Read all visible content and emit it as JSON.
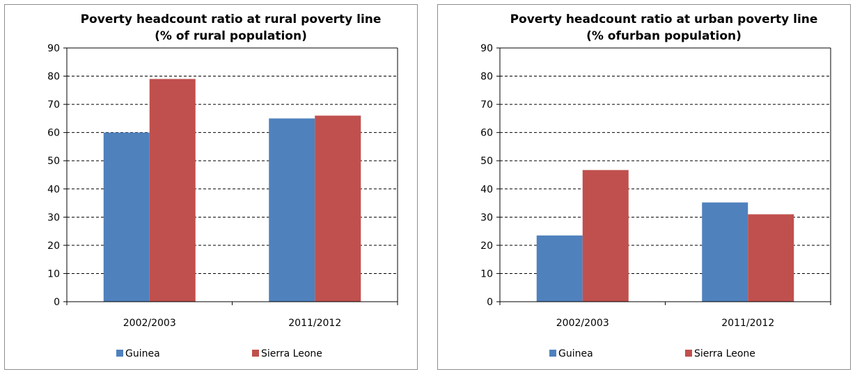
{
  "chart_data": [
    {
      "type": "bar",
      "title_lines": [
        "Poverty headcount ratio at rural poverty line",
        "(% of rural population)"
      ],
      "categories": [
        "2002/2003",
        "2011/2012"
      ],
      "series": [
        {
          "name": "Guinea",
          "values": [
            60,
            65
          ],
          "color": "#4f81bd"
        },
        {
          "name": "Sierra Leone",
          "values": [
            79,
            66
          ],
          "color": "#c0504d"
        }
      ],
      "ylim": [
        0,
        90
      ],
      "yticks": [
        0,
        10,
        20,
        30,
        40,
        50,
        60,
        70,
        80,
        90
      ],
      "grid": "dashed horizontal",
      "legend": "bottom"
    },
    {
      "type": "bar",
      "title_lines": [
        "Poverty headcount ratio at urban poverty line",
        "(% ofurban population)"
      ],
      "categories": [
        "2002/2003",
        "2011/2012"
      ],
      "series": [
        {
          "name": "Guinea",
          "values": [
            23.5,
            35.2
          ],
          "color": "#4f81bd"
        },
        {
          "name": "Sierra Leone",
          "values": [
            46.7,
            31
          ],
          "color": "#c0504d"
        }
      ],
      "ylim": [
        0,
        90
      ],
      "yticks": [
        0,
        10,
        20,
        30,
        40,
        50,
        60,
        70,
        80,
        90
      ],
      "grid": "dashed horizontal",
      "legend": "bottom"
    }
  ]
}
